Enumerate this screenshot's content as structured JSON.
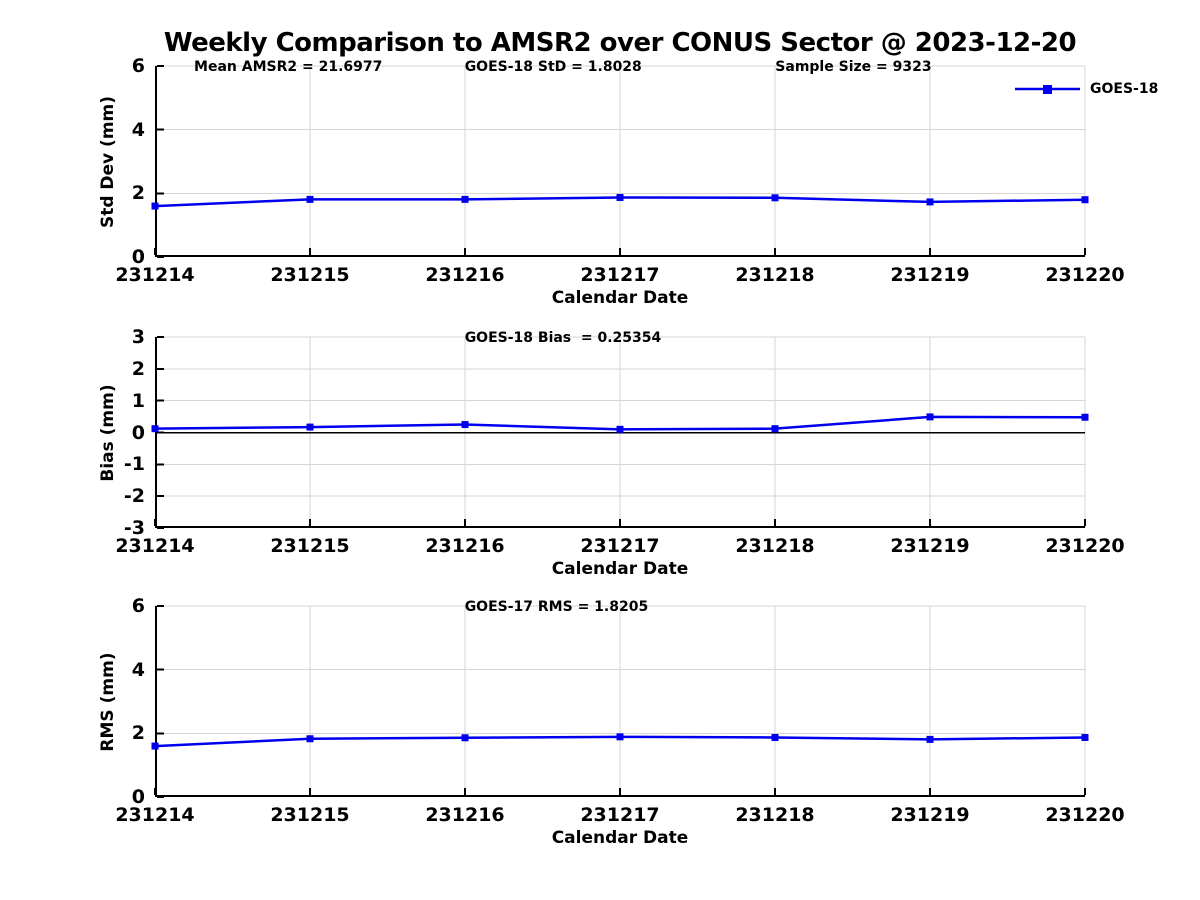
{
  "title": "Weekly Comparison to AMSR2 over CONUS Sector @ 2023-12-20",
  "legend": {
    "label": "GOES-18",
    "color": "#0000EE",
    "marker": "filled-square"
  },
  "colors": {
    "line": "#0000EE",
    "grid": "#d6d6d6",
    "axis": "#000000",
    "zero_line": "#000000",
    "background": "#ffffff",
    "text": "#000000"
  },
  "chart_data": [
    {
      "type": "line",
      "categories": [
        "231214",
        "231215",
        "231216",
        "231217",
        "231218",
        "231219",
        "231220"
      ],
      "series": [
        {
          "name": "GOES-18",
          "values": [
            1.6,
            1.81,
            1.81,
            1.87,
            1.86,
            1.73,
            1.8
          ]
        }
      ],
      "xlabel": "Calendar Date",
      "ylabel": "Std Dev (mm)",
      "ylim": [
        0,
        6
      ],
      "yticks": [
        0,
        2,
        4,
        6
      ],
      "grid": true,
      "zero_line": false,
      "legend_position": "top-right-outside",
      "annotations": [
        {
          "text": "Mean AMSR2 = 21.6977",
          "xfrac": 0.042
        },
        {
          "text": "GOES-18 StD = 1.8028",
          "xfrac": 0.333
        },
        {
          "text": "Sample Size = 9323",
          "xfrac": 0.667
        }
      ]
    },
    {
      "type": "line",
      "categories": [
        "231214",
        "231215",
        "231216",
        "231217",
        "231218",
        "231219",
        "231220"
      ],
      "series": [
        {
          "name": "GOES-18",
          "values": [
            0.12,
            0.17,
            0.25,
            0.1,
            0.12,
            0.49,
            0.48
          ]
        }
      ],
      "xlabel": "Calendar Date",
      "ylabel": "Bias (mm)",
      "ylim": [
        -3,
        3
      ],
      "yticks": [
        -3,
        -2,
        -1,
        0,
        1,
        2,
        3
      ],
      "grid": true,
      "zero_line": true,
      "annotations": [
        {
          "text": "GOES-18 Bias  = 0.25354",
          "xfrac": 0.333
        }
      ]
    },
    {
      "type": "line",
      "categories": [
        "231214",
        "231215",
        "231216",
        "231217",
        "231218",
        "231219",
        "231220"
      ],
      "series": [
        {
          "name": "GOES-18",
          "values": [
            1.6,
            1.83,
            1.86,
            1.89,
            1.87,
            1.81,
            1.87
          ]
        }
      ],
      "xlabel": "Calendar Date",
      "ylabel": "RMS (mm)",
      "ylim": [
        0,
        6
      ],
      "yticks": [
        0,
        2,
        4,
        6
      ],
      "grid": true,
      "zero_line": false,
      "annotations": [
        {
          "text": "GOES-17 RMS = 1.8205",
          "xfrac": 0.333
        }
      ]
    }
  ]
}
